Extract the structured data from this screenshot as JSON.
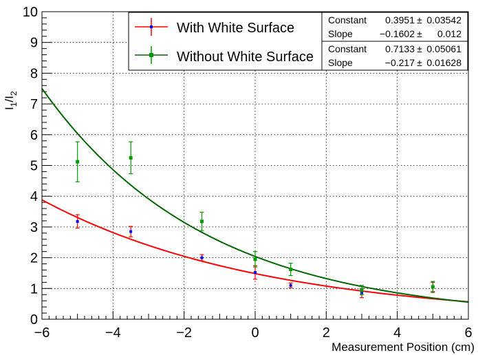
{
  "chart_data": {
    "type": "scatter",
    "xlabel": "Measurement Position (cm)",
    "ylabel_main": "I",
    "ylabel_sub1": "1",
    "ylabel_slash": "/",
    "ylabel_sub2": "2",
    "xlim": [
      -6,
      6
    ],
    "ylim": [
      0,
      10
    ],
    "x_ticks": [
      -6,
      -4,
      -2,
      0,
      2,
      4,
      6
    ],
    "y_ticks": [
      0,
      1,
      2,
      3,
      4,
      5,
      6,
      7,
      8,
      9,
      10
    ],
    "x_tick_labels": [
      "−6",
      "−4",
      "−2",
      "0",
      "2",
      "4",
      "6"
    ],
    "y_tick_labels": [
      "0",
      "1",
      "2",
      "3",
      "4",
      "5",
      "6",
      "7",
      "8",
      "9",
      "10"
    ],
    "grid": true,
    "legend_position": "top",
    "series": [
      {
        "name": "With White Surface",
        "color": "#ff0000",
        "marker_color": "#0000ff",
        "points": [
          {
            "x": -5.0,
            "y": 3.18,
            "err": 0.22
          },
          {
            "x": -3.5,
            "y": 2.85,
            "err": 0.17
          },
          {
            "x": -1.5,
            "y": 2.0,
            "err": 0.1
          },
          {
            "x": 0.0,
            "y": 1.52,
            "err": 0.22
          },
          {
            "x": 1.0,
            "y": 1.1,
            "err": 0.08
          },
          {
            "x": 3.0,
            "y": 0.85,
            "err": 0.15
          },
          {
            "x": 5.0,
            "y": 1.05,
            "err": 0.15
          }
        ],
        "fit": {
          "constant": 0.3951,
          "slope": -0.1602
        }
      },
      {
        "name": "Without White Surface",
        "color": "#006600",
        "marker_color": "#009900",
        "points": [
          {
            "x": -5.0,
            "y": 5.12,
            "err": 0.65
          },
          {
            "x": -3.5,
            "y": 5.25,
            "err": 0.52
          },
          {
            "x": -1.5,
            "y": 3.18,
            "err": 0.3
          },
          {
            "x": 0.0,
            "y": 1.95,
            "err": 0.25
          },
          {
            "x": 1.0,
            "y": 1.62,
            "err": 0.2
          },
          {
            "x": 3.0,
            "y": 0.95,
            "err": 0.15
          },
          {
            "x": 5.0,
            "y": 1.05,
            "err": 0.18
          }
        ],
        "fit": {
          "constant": 0.7133,
          "slope": -0.217
        }
      }
    ],
    "stats_boxes": [
      {
        "rows": [
          {
            "name": "Constant",
            "value": "0.3951",
            "pm": "±",
            "error": "0.03542"
          },
          {
            "name": "Slope",
            "value": "−0.1602",
            "pm": "±",
            "error": "0.012"
          }
        ]
      },
      {
        "rows": [
          {
            "name": "Constant",
            "value": "0.7133",
            "pm": "±",
            "error": "0.05061"
          },
          {
            "name": "Slope",
            "value": "−0.217",
            "pm": "±",
            "error": "0.01628"
          }
        ]
      }
    ]
  }
}
